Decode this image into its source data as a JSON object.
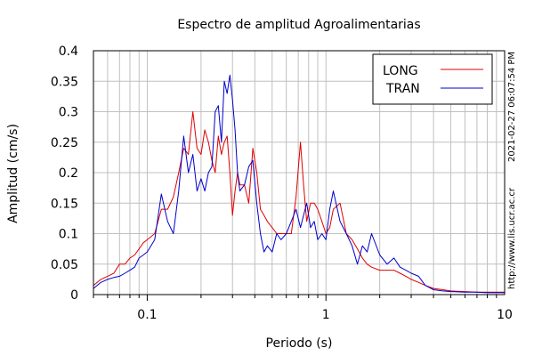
{
  "chart_data": {
    "type": "line",
    "title": "Espectro de amplitud Agroalimentarias",
    "xlabel": "Periodo (s)",
    "ylabel": "Amplitud (cm/s)",
    "x_scale": "log",
    "xlim": [
      0.05,
      10
    ],
    "ylim": [
      0,
      0.4
    ],
    "x_ticks": [
      0.1,
      1,
      10
    ],
    "x_tick_labels": [
      "0.1",
      "1",
      "10"
    ],
    "y_ticks": [
      0,
      0.05,
      0.1,
      0.15,
      0.2,
      0.25,
      0.3,
      0.35,
      0.4
    ],
    "y_tick_labels": [
      "0",
      "0.05",
      "0.1",
      "0.15",
      "0.2",
      "0.25",
      "0.3",
      "0.35",
      "0.4"
    ],
    "grid": true,
    "legend_position": "top-right",
    "timestamp": "2021-02-27 06:07:54 PM",
    "website": "http://www.lis.ucr.ac.cr",
    "series": [
      {
        "name": "LONG",
        "color": "#e00000",
        "x": [
          0.05,
          0.055,
          0.06,
          0.065,
          0.07,
          0.075,
          0.08,
          0.085,
          0.09,
          0.095,
          0.1,
          0.11,
          0.12,
          0.13,
          0.14,
          0.15,
          0.16,
          0.17,
          0.18,
          0.19,
          0.2,
          0.21,
          0.22,
          0.23,
          0.24,
          0.25,
          0.26,
          0.27,
          0.28,
          0.29,
          0.3,
          0.31,
          0.32,
          0.33,
          0.35,
          0.37,
          0.39,
          0.41,
          0.43,
          0.45,
          0.47,
          0.5,
          0.53,
          0.56,
          0.6,
          0.64,
          0.68,
          0.72,
          0.75,
          0.78,
          0.82,
          0.86,
          0.9,
          0.95,
          1.0,
          1.05,
          1.1,
          1.2,
          1.3,
          1.4,
          1.5,
          1.6,
          1.7,
          1.8,
          2.0,
          2.2,
          2.4,
          2.6,
          2.8,
          3.0,
          3.3,
          3.6,
          4.0,
          4.5,
          5.0,
          6.0,
          7.0,
          8.0,
          9.0,
          10.0
        ],
        "values": [
          0.015,
          0.025,
          0.03,
          0.035,
          0.05,
          0.05,
          0.06,
          0.065,
          0.075,
          0.085,
          0.09,
          0.1,
          0.14,
          0.14,
          0.16,
          0.2,
          0.24,
          0.23,
          0.3,
          0.24,
          0.23,
          0.27,
          0.25,
          0.22,
          0.2,
          0.26,
          0.23,
          0.25,
          0.26,
          0.2,
          0.13,
          0.17,
          0.2,
          0.18,
          0.18,
          0.15,
          0.24,
          0.2,
          0.14,
          0.13,
          0.12,
          0.11,
          0.1,
          0.1,
          0.1,
          0.1,
          0.16,
          0.25,
          0.18,
          0.12,
          0.15,
          0.15,
          0.14,
          0.12,
          0.1,
          0.11,
          0.14,
          0.15,
          0.1,
          0.09,
          0.075,
          0.06,
          0.05,
          0.045,
          0.04,
          0.04,
          0.04,
          0.035,
          0.03,
          0.025,
          0.02,
          0.015,
          0.01,
          0.008,
          0.006,
          0.005,
          0.004,
          0.004,
          0.004,
          0.004
        ]
      },
      {
        "name": "TRAN",
        "color": "#0000cc",
        "x": [
          0.05,
          0.055,
          0.06,
          0.065,
          0.07,
          0.075,
          0.08,
          0.085,
          0.09,
          0.095,
          0.1,
          0.11,
          0.12,
          0.13,
          0.14,
          0.15,
          0.16,
          0.17,
          0.18,
          0.19,
          0.2,
          0.21,
          0.22,
          0.23,
          0.24,
          0.25,
          0.26,
          0.27,
          0.28,
          0.29,
          0.3,
          0.31,
          0.32,
          0.33,
          0.35,
          0.37,
          0.39,
          0.41,
          0.43,
          0.45,
          0.47,
          0.5,
          0.53,
          0.56,
          0.6,
          0.64,
          0.68,
          0.72,
          0.75,
          0.78,
          0.82,
          0.86,
          0.9,
          0.95,
          1.0,
          1.05,
          1.1,
          1.2,
          1.3,
          1.4,
          1.5,
          1.6,
          1.7,
          1.8,
          2.0,
          2.2,
          2.4,
          2.6,
          2.8,
          3.0,
          3.3,
          3.6,
          4.0,
          4.5,
          5.0,
          6.0,
          7.0,
          8.0,
          9.0,
          10.0
        ],
        "values": [
          0.01,
          0.02,
          0.025,
          0.028,
          0.03,
          0.035,
          0.04,
          0.045,
          0.06,
          0.065,
          0.07,
          0.09,
          0.165,
          0.12,
          0.1,
          0.17,
          0.26,
          0.2,
          0.23,
          0.17,
          0.19,
          0.17,
          0.2,
          0.21,
          0.3,
          0.31,
          0.25,
          0.35,
          0.33,
          0.36,
          0.32,
          0.27,
          0.2,
          0.17,
          0.18,
          0.21,
          0.22,
          0.15,
          0.1,
          0.07,
          0.08,
          0.07,
          0.1,
          0.09,
          0.1,
          0.12,
          0.14,
          0.11,
          0.13,
          0.15,
          0.11,
          0.12,
          0.09,
          0.1,
          0.09,
          0.14,
          0.17,
          0.12,
          0.1,
          0.08,
          0.05,
          0.08,
          0.07,
          0.1,
          0.065,
          0.05,
          0.06,
          0.045,
          0.04,
          0.035,
          0.03,
          0.015,
          0.008,
          0.006,
          0.005,
          0.004,
          0.004,
          0.003,
          0.003,
          0.003
        ]
      }
    ]
  }
}
